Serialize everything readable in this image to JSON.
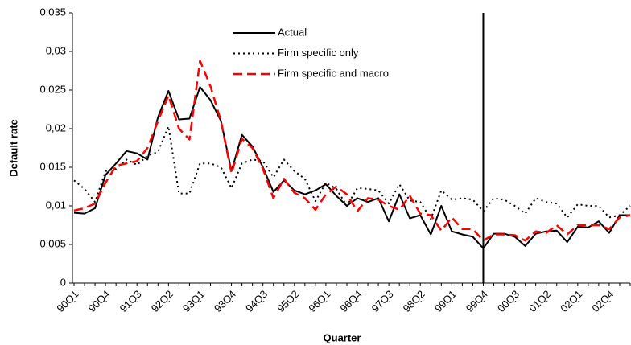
{
  "chart_data": {
    "type": "line",
    "x_label": "Quarter",
    "y_label": "Default rate",
    "categories": [
      "90Q1",
      null,
      null,
      "90Q4",
      null,
      null,
      "91Q3",
      null,
      null,
      "92Q2",
      null,
      null,
      "93Q1",
      null,
      null,
      "93Q4",
      null,
      null,
      "94Q3",
      null,
      null,
      "95Q2",
      null,
      null,
      "96Q1",
      null,
      null,
      "96Q4",
      null,
      null,
      "97Q3",
      null,
      null,
      "98Q2",
      null,
      null,
      "99Q1",
      null,
      null,
      "99Q4",
      null,
      null,
      "00Q3",
      null,
      null,
      "01Q2",
      null,
      null,
      "02Q1",
      null,
      null,
      "02Q4",
      null,
      null
    ],
    "series": [
      {
        "name": "Actual",
        "color": "#000000",
        "style": "solid",
        "values": [
          0.0091,
          0.009,
          0.0097,
          0.014,
          0.0155,
          0.0171,
          0.0168,
          0.016,
          0.0215,
          0.0249,
          0.0212,
          0.0213,
          0.0254,
          0.0237,
          0.021,
          0.0145,
          0.0192,
          0.0177,
          0.015,
          0.0118,
          0.0133,
          0.012,
          0.0115,
          0.012,
          0.0128,
          0.0113,
          0.01,
          0.011,
          0.0105,
          0.011,
          0.008,
          0.0115,
          0.0084,
          0.0088,
          0.0063,
          0.01,
          0.0067,
          0.0063,
          0.006,
          0.0045,
          0.0064,
          0.0064,
          0.006,
          0.0048,
          0.0064,
          0.0067,
          0.0068,
          0.0053,
          0.0073,
          0.0072,
          0.008,
          0.0065,
          0.0088,
          0.0088
        ]
      },
      {
        "name": "Firm specific only",
        "color": "#000000",
        "style": "dotted",
        "values": [
          0.0133,
          0.0122,
          0.0105,
          0.0145,
          0.0148,
          0.016,
          0.0153,
          0.0165,
          0.017,
          0.0203,
          0.0116,
          0.0116,
          0.0155,
          0.0155,
          0.015,
          0.0123,
          0.0155,
          0.016,
          0.0158,
          0.0137,
          0.016,
          0.0145,
          0.0135,
          0.0106,
          0.013,
          0.0122,
          0.01,
          0.0123,
          0.0122,
          0.012,
          0.0103,
          0.0128,
          0.0107,
          0.0105,
          0.0083,
          0.012,
          0.0108,
          0.011,
          0.0108,
          0.0093,
          0.011,
          0.0108,
          0.01,
          0.009,
          0.011,
          0.0105,
          0.0103,
          0.0085,
          0.0102,
          0.01,
          0.01,
          0.0085,
          0.0088,
          0.01
        ]
      },
      {
        "name": "Firm specific and macro",
        "color": "#ff0000",
        "style": "dashed",
        "values": [
          0.0094,
          0.0097,
          0.0103,
          0.013,
          0.0152,
          0.0155,
          0.0158,
          0.0175,
          0.021,
          0.0243,
          0.02,
          0.0186,
          0.0288,
          0.0255,
          0.021,
          0.0142,
          0.0187,
          0.0175,
          0.0148,
          0.011,
          0.0135,
          0.0117,
          0.011,
          0.0095,
          0.0115,
          0.0125,
          0.0115,
          0.0093,
          0.011,
          0.0108,
          0.01,
          0.0095,
          0.0113,
          0.009,
          0.0088,
          0.0068,
          0.0085,
          0.007,
          0.007,
          0.0055,
          0.0063,
          0.0063,
          0.0062,
          0.0055,
          0.0067,
          0.0065,
          0.0075,
          0.0063,
          0.0075,
          0.0075,
          0.0075,
          0.007,
          0.0085,
          0.0088
        ]
      }
    ],
    "ylim": [
      0,
      0.035
    ],
    "yticks": [
      0,
      {
        "value": 0.005,
        "label": "0,005"
      },
      {
        "value": 0.01,
        "label": "0,01"
      },
      {
        "value": 0.015,
        "label": "0,015"
      },
      {
        "value": 0.02,
        "label": "0,02"
      },
      {
        "value": 0.025,
        "label": "0,025"
      },
      {
        "value": 0.03,
        "label": "0,03"
      },
      {
        "value": 0.035,
        "label": "0,035"
      }
    ],
    "grid": false,
    "legend": "top",
    "marker_line": {
      "category_index": 39,
      "color": "#000000"
    }
  }
}
